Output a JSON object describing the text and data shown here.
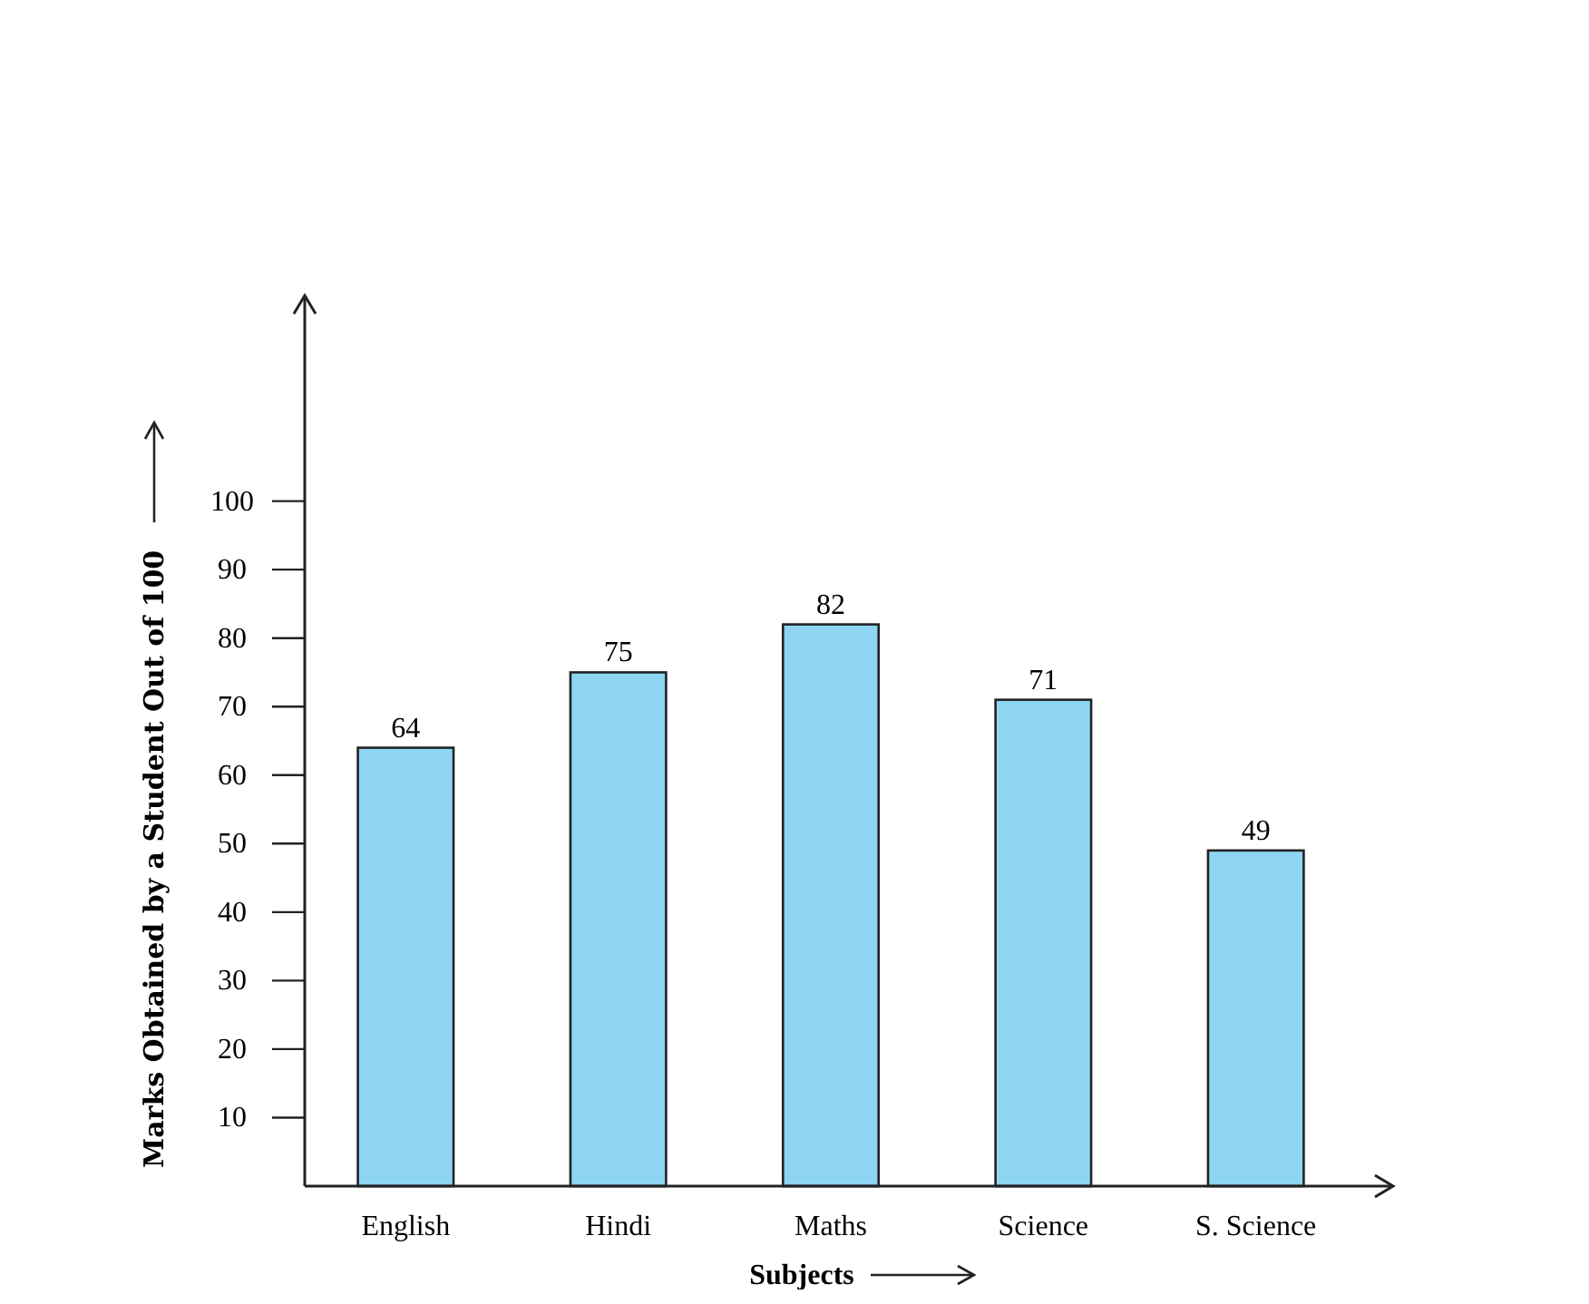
{
  "chart_data": {
    "type": "bar",
    "xlabel": "Subjects",
    "ylabel": "Marks Obtained by a Student Out of 100",
    "categories": [
      "English",
      "Hindi",
      "Maths",
      "Science",
      "S. Science"
    ],
    "values": [
      64,
      75,
      82,
      71,
      49
    ],
    "color": "#8dd5f2",
    "ylim": [
      0,
      130
    ],
    "yticks": [
      10,
      20,
      30,
      40,
      50,
      60,
      70,
      80,
      90,
      100
    ],
    "data_labels": true
  }
}
